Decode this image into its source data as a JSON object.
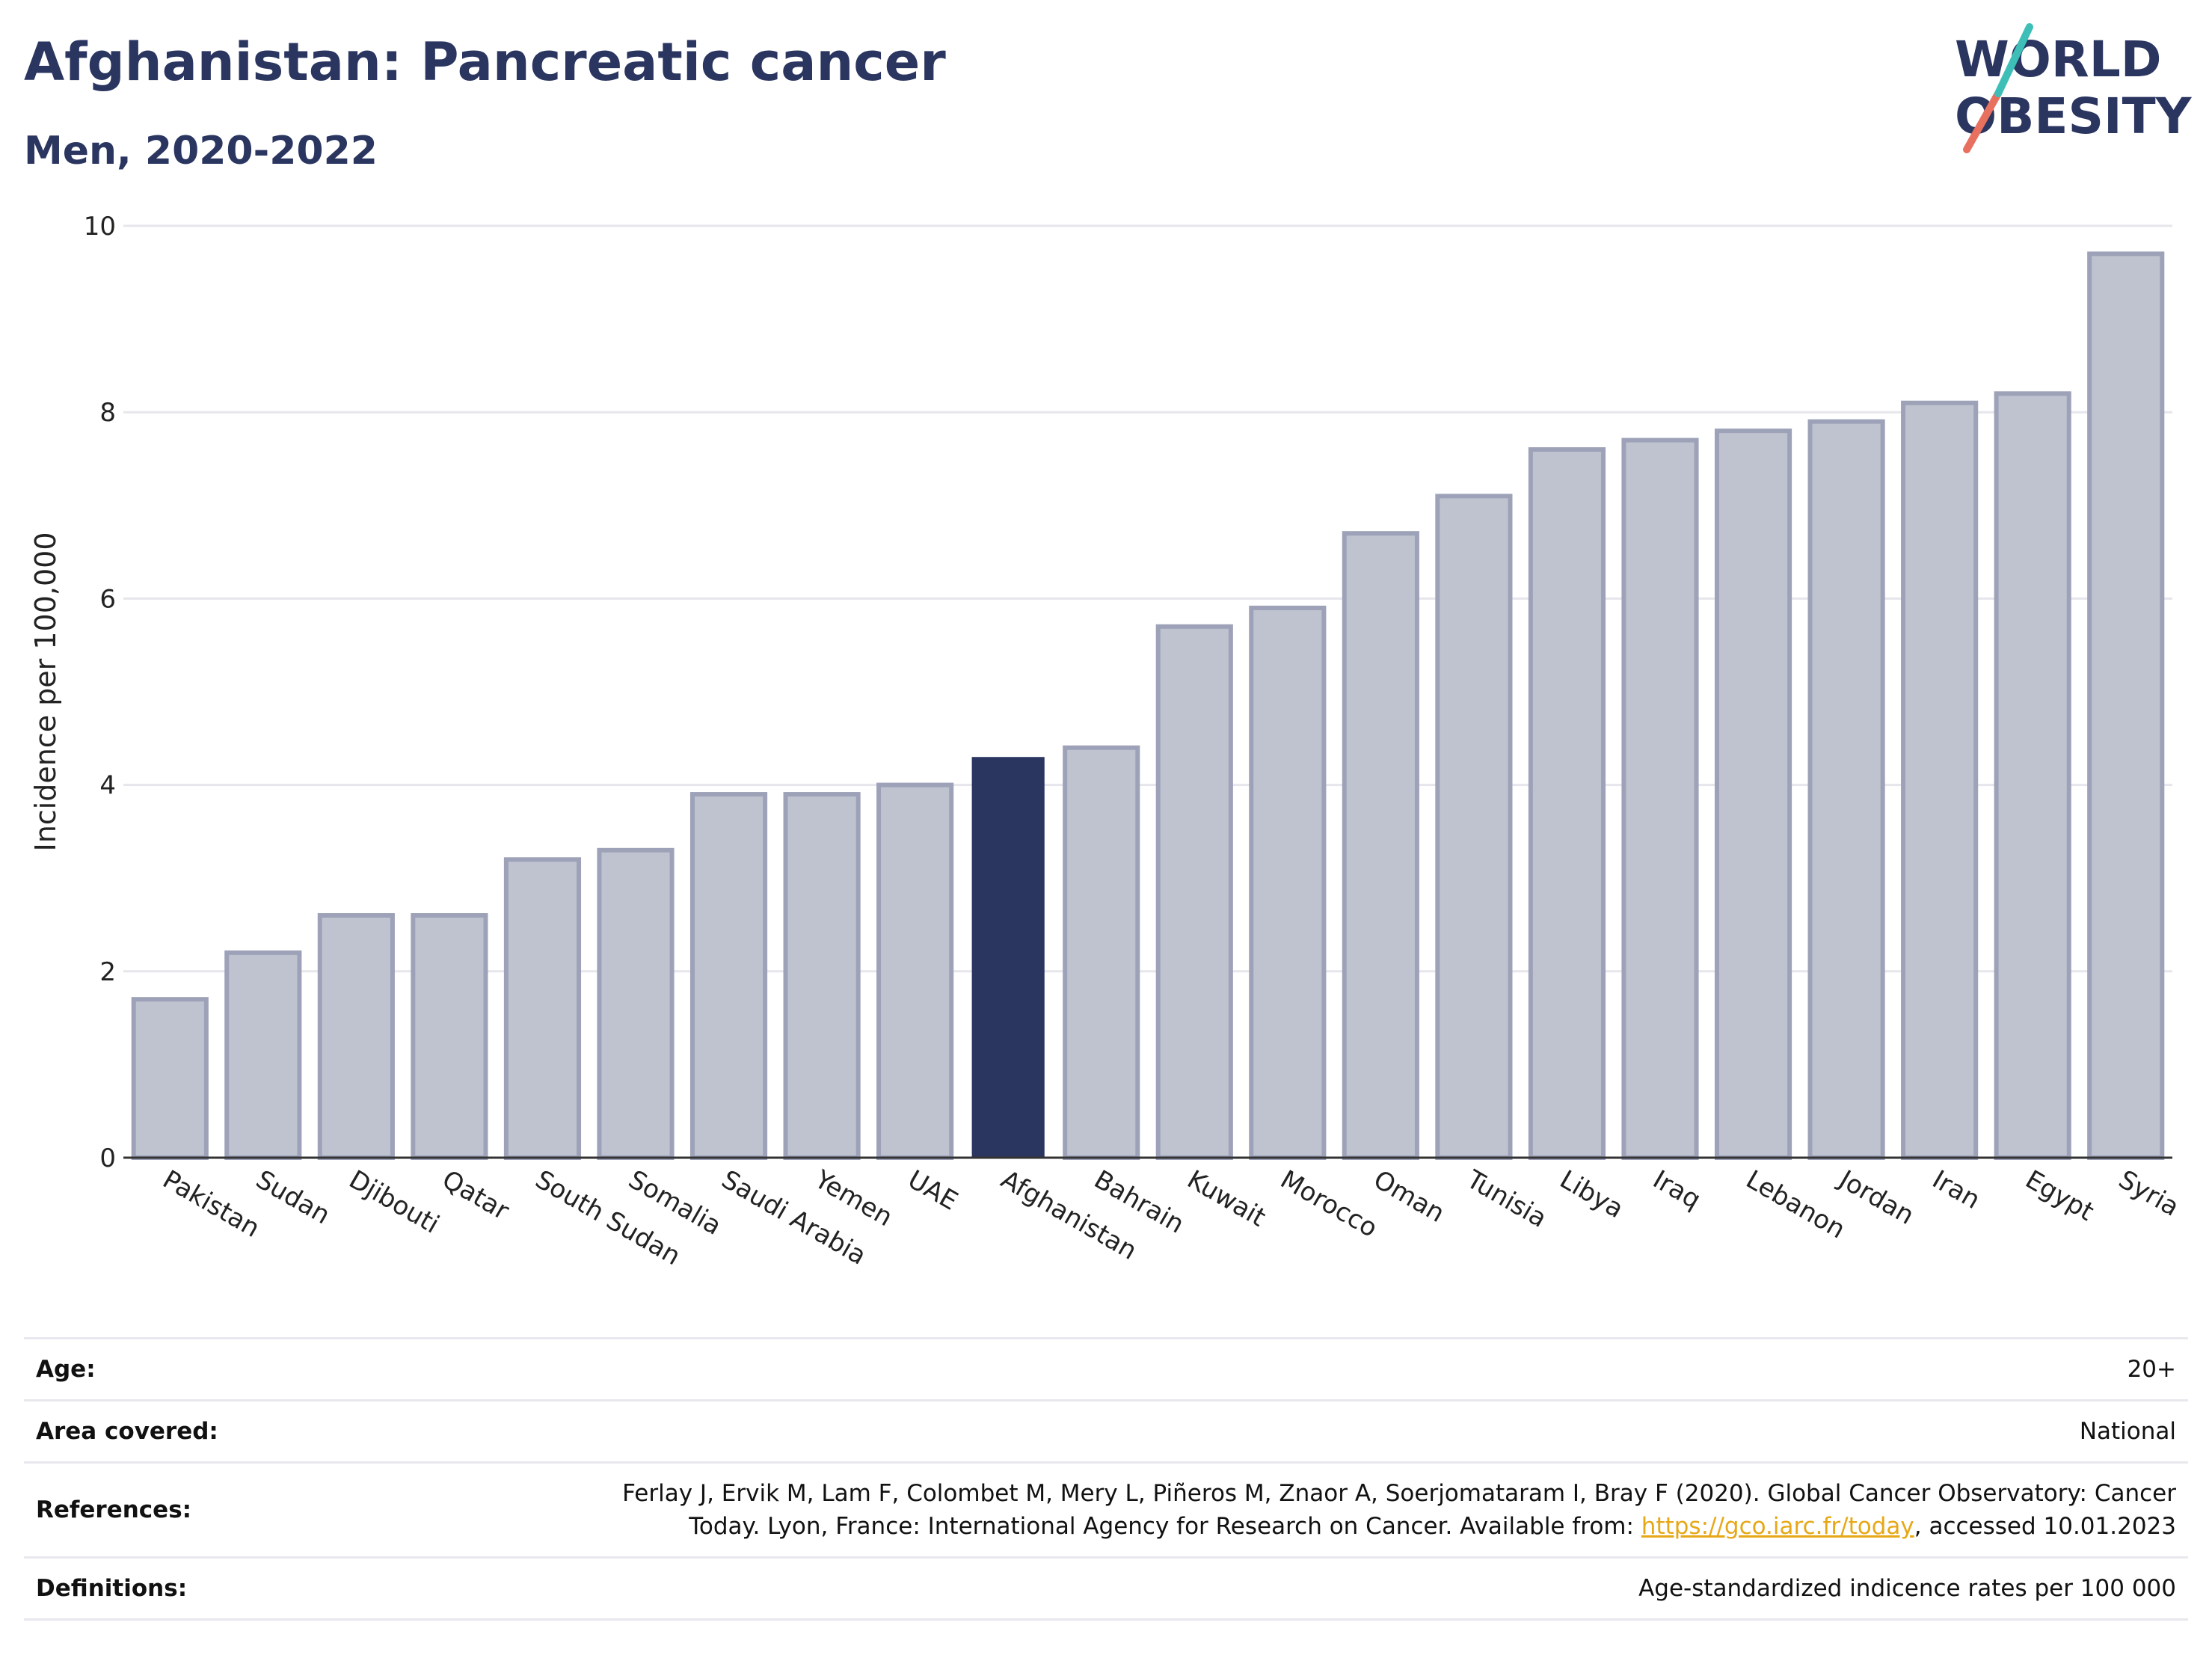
{
  "header": {
    "title": "Afghanistan: Pancreatic cancer",
    "subtitle": "Men, 2020-2022"
  },
  "logo": {
    "line1": "WORLD",
    "line2": "OBESITY",
    "accent_color": "#e8705e",
    "teal_color": "#3dbfb8"
  },
  "chart_data": {
    "type": "bar",
    "ylabel": "Incidence per 100,000",
    "xlabel": "",
    "ylim": [
      0,
      10
    ],
    "yticks": [
      0,
      2,
      4,
      6,
      8,
      10
    ],
    "grid": true,
    "highlight": "Afghanistan",
    "colors": {
      "bar": "#bfc3d0",
      "bar_border": "#9da2b8",
      "highlight": "#2a3560"
    },
    "categories": [
      "Pakistan",
      "Sudan",
      "Djibouti",
      "Qatar",
      "South Sudan",
      "Somalia",
      "Saudi Arabia",
      "Yemen",
      "UAE",
      "Afghanistan",
      "Bahrain",
      "Kuwait",
      "Morocco",
      "Oman",
      "Tunisia",
      "Libya",
      "Iraq",
      "Lebanon",
      "Jordan",
      "Iran",
      "Egypt",
      "Syria"
    ],
    "values": [
      1.7,
      2.2,
      2.6,
      2.6,
      3.2,
      3.3,
      3.9,
      3.9,
      4.0,
      4.3,
      4.4,
      5.7,
      5.9,
      6.7,
      7.1,
      7.6,
      7.7,
      7.8,
      7.9,
      8.1,
      8.2,
      9.7
    ]
  },
  "info": {
    "age_label": "Age:",
    "age_value": "20+",
    "area_label": "Area covered:",
    "area_value": "National",
    "ref_label": "References:",
    "ref_line1": "Ferlay J, Ervik M, Lam F, Colombet M, Mery L, Piñeros M, Znaor A, Soerjomataram I, Bray F (2020). Global Cancer Observatory: Cancer",
    "ref_line2_pre": "Today. Lyon, France: International Agency for Research on Cancer. Available from: ",
    "ref_link": "https://gco.iarc.fr/today",
    "ref_line2_post": ", accessed 10.01.2023",
    "def_label": "Definitions:",
    "def_value": "Age-standardized indicence rates per 100 000"
  }
}
